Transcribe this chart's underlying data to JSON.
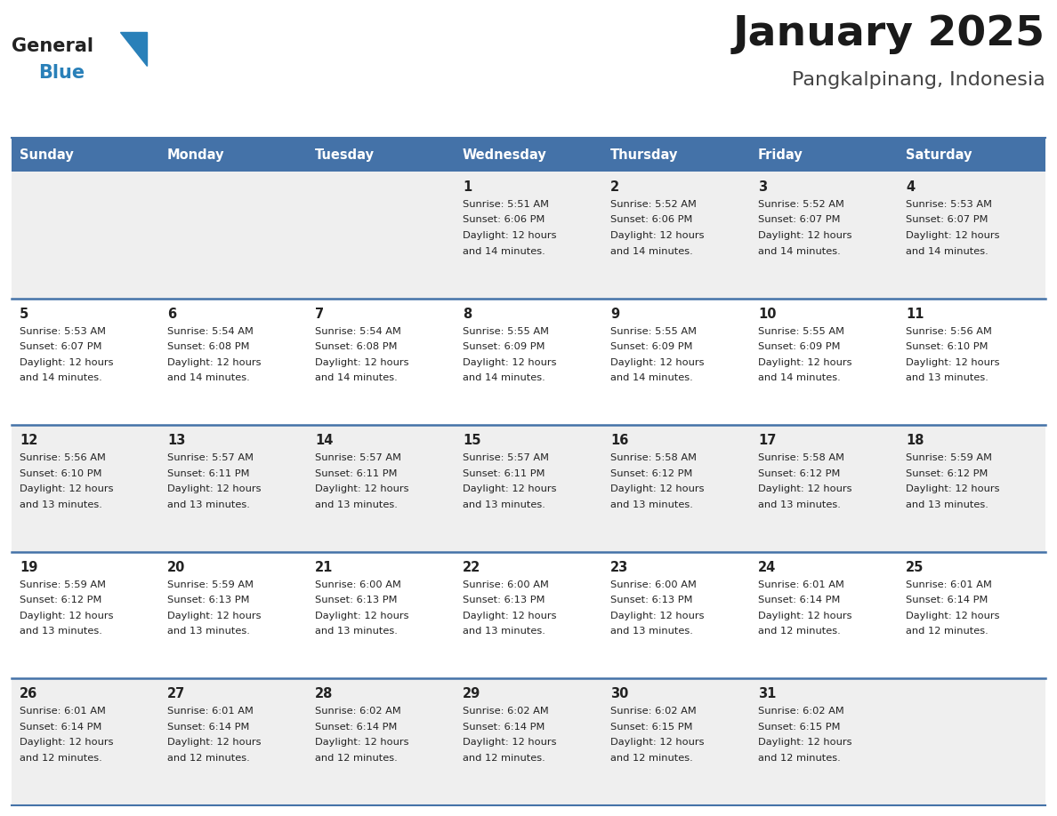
{
  "title": "January 2025",
  "subtitle": "Pangkalpinang, Indonesia",
  "header_bg_color": "#4472a8",
  "header_text_color": "#ffffff",
  "day_names": [
    "Sunday",
    "Monday",
    "Tuesday",
    "Wednesday",
    "Thursday",
    "Friday",
    "Saturday"
  ],
  "bg_color": "#ffffff",
  "cell_bg_light": "#efefef",
  "cell_bg_white": "#ffffff",
  "date_text_color": "#222222",
  "info_text_color": "#222222",
  "row_line_color": "#4472a8",
  "logo_general_color": "#222222",
  "logo_blue_color": "#2980b9",
  "logo_triangle_color": "#2980b9",
  "calendar": [
    [
      null,
      null,
      null,
      {
        "day": 1,
        "sunrise": "5:51 AM",
        "sunset": "6:06 PM",
        "daylight": "12 hours",
        "daylight2": "and 14 minutes."
      },
      {
        "day": 2,
        "sunrise": "5:52 AM",
        "sunset": "6:06 PM",
        "daylight": "12 hours",
        "daylight2": "and 14 minutes."
      },
      {
        "day": 3,
        "sunrise": "5:52 AM",
        "sunset": "6:07 PM",
        "daylight": "12 hours",
        "daylight2": "and 14 minutes."
      },
      {
        "day": 4,
        "sunrise": "5:53 AM",
        "sunset": "6:07 PM",
        "daylight": "12 hours",
        "daylight2": "and 14 minutes."
      }
    ],
    [
      {
        "day": 5,
        "sunrise": "5:53 AM",
        "sunset": "6:07 PM",
        "daylight": "12 hours",
        "daylight2": "and 14 minutes."
      },
      {
        "day": 6,
        "sunrise": "5:54 AM",
        "sunset": "6:08 PM",
        "daylight": "12 hours",
        "daylight2": "and 14 minutes."
      },
      {
        "day": 7,
        "sunrise": "5:54 AM",
        "sunset": "6:08 PM",
        "daylight": "12 hours",
        "daylight2": "and 14 minutes."
      },
      {
        "day": 8,
        "sunrise": "5:55 AM",
        "sunset": "6:09 PM",
        "daylight": "12 hours",
        "daylight2": "and 14 minutes."
      },
      {
        "day": 9,
        "sunrise": "5:55 AM",
        "sunset": "6:09 PM",
        "daylight": "12 hours",
        "daylight2": "and 14 minutes."
      },
      {
        "day": 10,
        "sunrise": "5:55 AM",
        "sunset": "6:09 PM",
        "daylight": "12 hours",
        "daylight2": "and 14 minutes."
      },
      {
        "day": 11,
        "sunrise": "5:56 AM",
        "sunset": "6:10 PM",
        "daylight": "12 hours",
        "daylight2": "and 13 minutes."
      }
    ],
    [
      {
        "day": 12,
        "sunrise": "5:56 AM",
        "sunset": "6:10 PM",
        "daylight": "12 hours",
        "daylight2": "and 13 minutes."
      },
      {
        "day": 13,
        "sunrise": "5:57 AM",
        "sunset": "6:11 PM",
        "daylight": "12 hours",
        "daylight2": "and 13 minutes."
      },
      {
        "day": 14,
        "sunrise": "5:57 AM",
        "sunset": "6:11 PM",
        "daylight": "12 hours",
        "daylight2": "and 13 minutes."
      },
      {
        "day": 15,
        "sunrise": "5:57 AM",
        "sunset": "6:11 PM",
        "daylight": "12 hours",
        "daylight2": "and 13 minutes."
      },
      {
        "day": 16,
        "sunrise": "5:58 AM",
        "sunset": "6:12 PM",
        "daylight": "12 hours",
        "daylight2": "and 13 minutes."
      },
      {
        "day": 17,
        "sunrise": "5:58 AM",
        "sunset": "6:12 PM",
        "daylight": "12 hours",
        "daylight2": "and 13 minutes."
      },
      {
        "day": 18,
        "sunrise": "5:59 AM",
        "sunset": "6:12 PM",
        "daylight": "12 hours",
        "daylight2": "and 13 minutes."
      }
    ],
    [
      {
        "day": 19,
        "sunrise": "5:59 AM",
        "sunset": "6:12 PM",
        "daylight": "12 hours",
        "daylight2": "and 13 minutes."
      },
      {
        "day": 20,
        "sunrise": "5:59 AM",
        "sunset": "6:13 PM",
        "daylight": "12 hours",
        "daylight2": "and 13 minutes."
      },
      {
        "day": 21,
        "sunrise": "6:00 AM",
        "sunset": "6:13 PM",
        "daylight": "12 hours",
        "daylight2": "and 13 minutes."
      },
      {
        "day": 22,
        "sunrise": "6:00 AM",
        "sunset": "6:13 PM",
        "daylight": "12 hours",
        "daylight2": "and 13 minutes."
      },
      {
        "day": 23,
        "sunrise": "6:00 AM",
        "sunset": "6:13 PM",
        "daylight": "12 hours",
        "daylight2": "and 13 minutes."
      },
      {
        "day": 24,
        "sunrise": "6:01 AM",
        "sunset": "6:14 PM",
        "daylight": "12 hours",
        "daylight2": "and 12 minutes."
      },
      {
        "day": 25,
        "sunrise": "6:01 AM",
        "sunset": "6:14 PM",
        "daylight": "12 hours",
        "daylight2": "and 12 minutes."
      }
    ],
    [
      {
        "day": 26,
        "sunrise": "6:01 AM",
        "sunset": "6:14 PM",
        "daylight": "12 hours",
        "daylight2": "and 12 minutes."
      },
      {
        "day": 27,
        "sunrise": "6:01 AM",
        "sunset": "6:14 PM",
        "daylight": "12 hours",
        "daylight2": "and 12 minutes."
      },
      {
        "day": 28,
        "sunrise": "6:02 AM",
        "sunset": "6:14 PM",
        "daylight": "12 hours",
        "daylight2": "and 12 minutes."
      },
      {
        "day": 29,
        "sunrise": "6:02 AM",
        "sunset": "6:14 PM",
        "daylight": "12 hours",
        "daylight2": "and 12 minutes."
      },
      {
        "day": 30,
        "sunrise": "6:02 AM",
        "sunset": "6:15 PM",
        "daylight": "12 hours",
        "daylight2": "and 12 minutes."
      },
      {
        "day": 31,
        "sunrise": "6:02 AM",
        "sunset": "6:15 PM",
        "daylight": "12 hours",
        "daylight2": "and 12 minutes."
      },
      null
    ]
  ]
}
